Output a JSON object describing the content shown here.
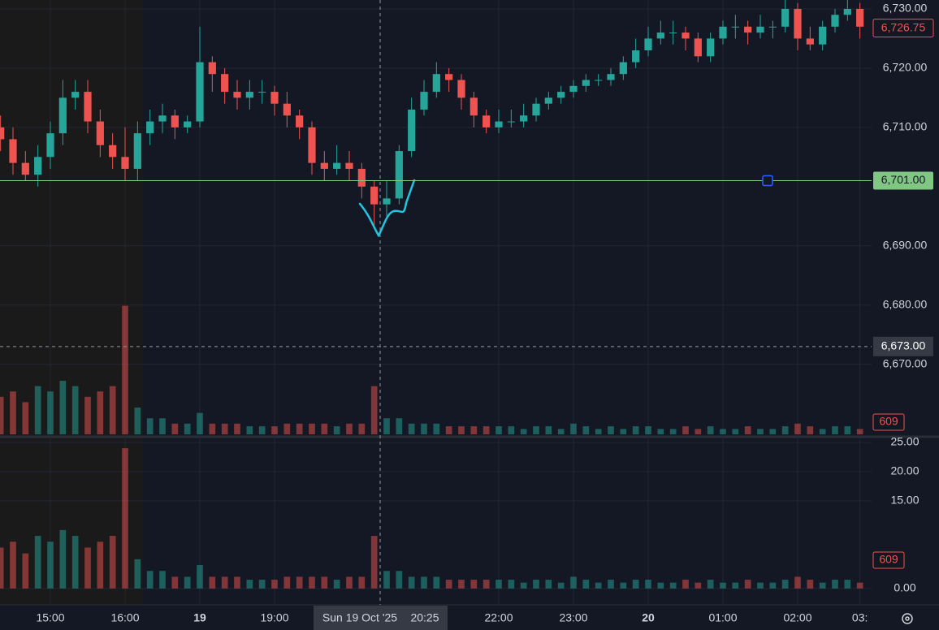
{
  "chart_data": {
    "type": "candlestick",
    "categories": [
      null,
      null,
      null,
      null,
      "15:00",
      null,
      null,
      null,
      null,
      null,
      "16:00",
      null,
      null,
      null,
      null,
      null,
      "19",
      null,
      null,
      null,
      null,
      null,
      "19:00",
      null,
      null,
      null,
      null,
      null,
      null,
      null,
      null,
      null,
      null,
      null,
      null,
      null,
      null,
      null,
      null,
      null,
      "22:00",
      null,
      null,
      null,
      null,
      null,
      "23:00",
      null,
      null,
      null,
      null,
      null,
      "20",
      null,
      null,
      null,
      null,
      null,
      "01:00",
      null,
      null,
      null,
      null,
      null,
      "02:00",
      null,
      null,
      null,
      null,
      "03:"
    ],
    "open": [
      6710,
      6708,
      6704,
      6702,
      6705,
      6709,
      6715,
      6716,
      6711,
      6707,
      6705,
      6703,
      6709,
      6711,
      6712,
      6710,
      6711,
      6721,
      6719,
      6716,
      6715,
      6716,
      6716,
      6714,
      6712,
      6710,
      6704,
      6703,
      6704,
      6703,
      6700,
      6697,
      6698,
      6706,
      6713,
      6716,
      6719,
      6718,
      6715,
      6712,
      6710,
      6711,
      6711,
      6712,
      6714,
      6715,
      6716,
      6717,
      6718,
      6718,
      6719,
      6721,
      6723,
      6725,
      6726,
      6726,
      6725,
      6722,
      6725,
      6727,
      6727,
      6726,
      6727,
      6727,
      6730,
      6725,
      6724,
      6727,
      6729,
      6730
    ],
    "high": [
      6712,
      6710,
      6706,
      6707,
      6711,
      6718,
      6718,
      6718,
      6713,
      6709,
      6710,
      6711,
      6713,
      6714,
      6713,
      6712,
      6727,
      6722,
      6720,
      6718,
      6718,
      6718,
      6717,
      6716,
      6713,
      6711,
      6706,
      6707,
      6706,
      6704,
      6701,
      6701,
      6707,
      6715,
      6718,
      6721,
      6720,
      6719,
      6716,
      6713,
      6713,
      6713,
      6714,
      6715,
      6716,
      6717,
      6718,
      6719,
      6719,
      6720,
      6722,
      6725,
      6727,
      6728,
      6728,
      6727,
      6726,
      6726,
      6728,
      6729,
      6728,
      6729,
      6728,
      6732,
      6731,
      6727,
      6728,
      6730,
      6732,
      6731
    ],
    "low": [
      6706,
      6702,
      6701,
      6700,
      6703,
      6707,
      6713,
      6709,
      6705,
      6703,
      6701,
      6701,
      6707,
      6709,
      6708,
      6709,
      6710,
      6716,
      6714,
      6713,
      6713,
      6714,
      6712,
      6710,
      6708,
      6702,
      6701,
      6702,
      6701,
      6698,
      6693,
      6695,
      6697,
      6705,
      6712,
      6715,
      6716,
      6713,
      6710,
      6709,
      6709,
      6710,
      6710,
      6711,
      6713,
      6714,
      6715,
      6716,
      6717,
      6717,
      6718,
      6720,
      6722,
      6724,
      6724,
      6723,
      6721,
      6721,
      6724,
      6725,
      6724,
      6725,
      6725,
      6726,
      6723,
      6723,
      6723,
      6726,
      6728,
      6725
    ],
    "close": [
      6708,
      6704,
      6702,
      6705,
      6709,
      6715,
      6716,
      6711,
      6707,
      6705,
      6703,
      6709,
      6711,
      6712,
      6710,
      6711,
      6721,
      6719,
      6716,
      6715,
      6716,
      6716,
      6714,
      6712,
      6710,
      6704,
      6703,
      6704,
      6703,
      6700,
      6697,
      6698,
      6706,
      6713,
      6716,
      6719,
      6718,
      6715,
      6712,
      6710,
      6711,
      6711,
      6712,
      6714,
      6715,
      6716,
      6717,
      6718,
      6718,
      6719,
      6721,
      6723,
      6725,
      6726,
      6726,
      6725,
      6722,
      6725,
      6727,
      6727,
      6726,
      6727,
      6727,
      6730,
      6725,
      6724,
      6727,
      6729,
      6730,
      6727
    ],
    "up_color": "#26a69a",
    "down_color": "#ef5350",
    "ylim": [
      6657.9,
      6731.5
    ],
    "yticks": [
      {
        "value": 6730,
        "label": "6,730.00"
      },
      {
        "value": 6720,
        "label": "6,720.00"
      },
      {
        "value": 6710,
        "label": "6,710.00"
      },
      {
        "value": 6690,
        "label": "6,690.00"
      },
      {
        "value": 6680,
        "label": "6,680.00"
      },
      {
        "value": 6670,
        "label": "6,670.00"
      }
    ],
    "grid": true,
    "volume": {
      "values": [
        7,
        8,
        6,
        9,
        8,
        10,
        9,
        7,
        8,
        9,
        24,
        5,
        3,
        3,
        2,
        2,
        4,
        2,
        2,
        2,
        1.5,
        1.5,
        1.5,
        2,
        2,
        2,
        2,
        1.5,
        2,
        2,
        9,
        3,
        3,
        2,
        2,
        2,
        1.5,
        1.5,
        1.5,
        1.5,
        1.5,
        1.5,
        1,
        1.5,
        1.5,
        1,
        2,
        1.5,
        1,
        1.5,
        1,
        1.5,
        1.5,
        1,
        1,
        1.5,
        1,
        1.5,
        1,
        1,
        1.5,
        1,
        1,
        1.5,
        2,
        1.5,
        1,
        1.5,
        1.5,
        1
      ],
      "ylim": [
        -2.8,
        26.1
      ],
      "yticks": [
        {
          "value": 25,
          "label": "25.00"
        },
        {
          "value": 20,
          "label": "20.00"
        },
        {
          "value": 15,
          "label": "15.00"
        },
        {
          "value": 0,
          "label": "0.00"
        }
      ],
      "last_label": "609"
    },
    "horizontal_line": {
      "value": 6701,
      "label": "6,701.00",
      "color": "#81c784"
    },
    "last_price": {
      "value": 6726.75,
      "label": "6,726.75"
    },
    "crosshair": {
      "date_label": "Sun 19 Oct '25",
      "time_label": "20:25",
      "price": {
        "value": 6673,
        "label": "6,673.00"
      }
    }
  }
}
